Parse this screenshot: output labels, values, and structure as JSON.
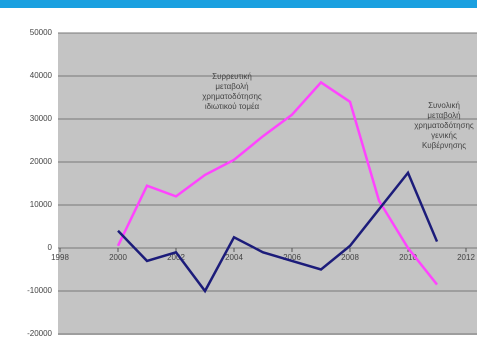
{
  "chart_data": {
    "type": "line",
    "x": [
      2000,
      2001,
      2002,
      2003,
      2004,
      2005,
      2006,
      2007,
      2008,
      2009,
      2010,
      2011
    ],
    "series": [
      {
        "color": "#ff44ff",
        "values": [
          500,
          14500,
          12000,
          17000,
          20500,
          26000,
          31000,
          38500,
          34000,
          11000,
          0,
          -8500
        ]
      },
      {
        "color": "#1c1c7a",
        "values": [
          4000,
          -3000,
          -1000,
          -10000,
          2500,
          -1000,
          -3000,
          -5000,
          500,
          9000,
          17500,
          1500
        ]
      }
    ],
    "annotations": [
      [
        "Συρρευτική",
        "μεταβολή",
        "χρηματοδότησης",
        "ιδιωτικού τομέα"
      ],
      [
        "Συνολική",
        "μεταβολή",
        "χρηματοδότησης",
        "γενικής",
        "Κυβέρνησης"
      ]
    ],
    "xlim": [
      1998,
      2012
    ],
    "xticks": [
      1998,
      2000,
      2002,
      2004,
      2006,
      2008,
      2010,
      2012
    ],
    "ylim": [
      -20000,
      50000
    ],
    "yticks": [
      -20000,
      -10000,
      0,
      10000,
      20000,
      30000,
      40000,
      50000
    ],
    "grid": true
  }
}
